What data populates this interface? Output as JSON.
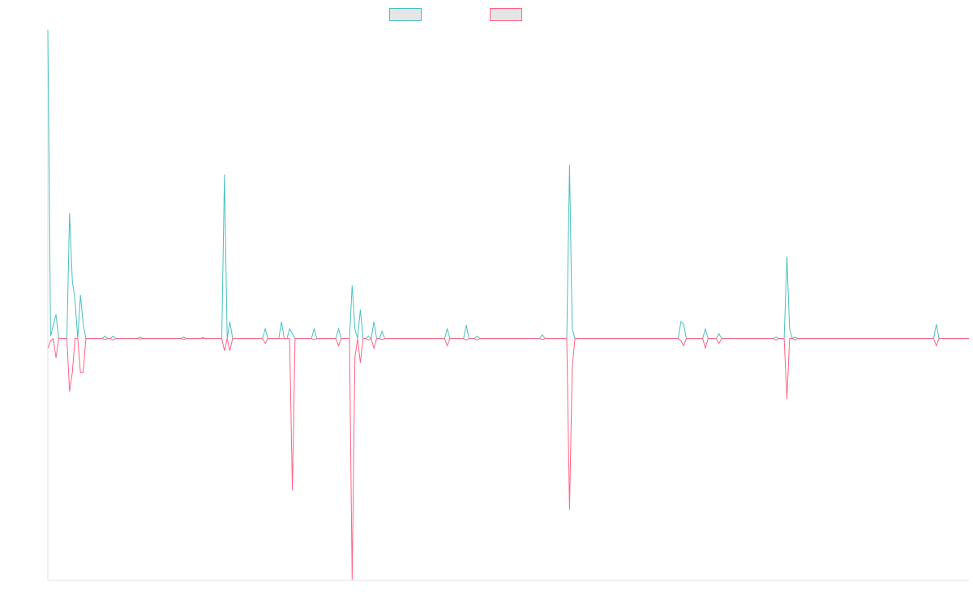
{
  "chart_data": {
    "type": "line",
    "title": "",
    "xlabel": "",
    "ylabel": "",
    "ylim": [
      -50,
      64
    ],
    "grid": false,
    "legend": "top-center",
    "series": [
      {
        "color": "#4bc0c0",
        "fill": "#e5e5e5",
        "points": [
          [
            0,
            64
          ],
          [
            1,
            0.5
          ],
          [
            3,
            5
          ],
          [
            4,
            0
          ],
          [
            5,
            0
          ],
          [
            6,
            0
          ],
          [
            7,
            0
          ],
          [
            8,
            26
          ],
          [
            9,
            12
          ],
          [
            10,
            8
          ],
          [
            11,
            0
          ],
          [
            12,
            9
          ],
          [
            13,
            3
          ],
          [
            14,
            0
          ],
          [
            20,
            0
          ],
          [
            21,
            0.5
          ],
          [
            22,
            0
          ],
          [
            23,
            0
          ],
          [
            24,
            0.5
          ],
          [
            25,
            0
          ],
          [
            26,
            0
          ],
          [
            27,
            0
          ],
          [
            28,
            0
          ],
          [
            29,
            0
          ],
          [
            30,
            0
          ],
          [
            31,
            0
          ],
          [
            32,
            0
          ],
          [
            33,
            0
          ],
          [
            34,
            0.3
          ],
          [
            35,
            0
          ],
          [
            49,
            0
          ],
          [
            50,
            0.3
          ],
          [
            51,
            0
          ],
          [
            56,
            0
          ],
          [
            57,
            0.2
          ],
          [
            58,
            0
          ],
          [
            63,
            0
          ],
          [
            64,
            0
          ],
          [
            65,
            34
          ],
          [
            66,
            0
          ],
          [
            67,
            3.5
          ],
          [
            68,
            0
          ],
          [
            79,
            0
          ],
          [
            80,
            2
          ],
          [
            81,
            0
          ],
          [
            85,
            0
          ],
          [
            86,
            3.5
          ],
          [
            87,
            0
          ],
          [
            88,
            0
          ],
          [
            89,
            2
          ],
          [
            90,
            1
          ],
          [
            91,
            0
          ],
          [
            97,
            0
          ],
          [
            98,
            2
          ],
          [
            99,
            0
          ],
          [
            106,
            0
          ],
          [
            107,
            2
          ],
          [
            108,
            0
          ],
          [
            110,
            0
          ],
          [
            111,
            0
          ],
          [
            112,
            11
          ],
          [
            113,
            2
          ],
          [
            114,
            0
          ],
          [
            115,
            6
          ],
          [
            116,
            0
          ],
          [
            117,
            0
          ],
          [
            118,
            0.5
          ],
          [
            119,
            0
          ],
          [
            120,
            3.5
          ],
          [
            121,
            0
          ],
          [
            122,
            0
          ],
          [
            123,
            1.5
          ],
          [
            124,
            0
          ],
          [
            146,
            0
          ],
          [
            147,
            2
          ],
          [
            148,
            0
          ],
          [
            153,
            0
          ],
          [
            154,
            2.8
          ],
          [
            155,
            0
          ],
          [
            157,
            0
          ],
          [
            158,
            0.5
          ],
          [
            159,
            0
          ],
          [
            181,
            0
          ],
          [
            182,
            0.8
          ],
          [
            183,
            0
          ],
          [
            191,
            0
          ],
          [
            192,
            36
          ],
          [
            193,
            2
          ],
          [
            194,
            0
          ],
          [
            195,
            0
          ],
          [
            196,
            0
          ],
          [
            197,
            0
          ],
          [
            205,
            0
          ],
          [
            206,
            0
          ],
          [
            207,
            0
          ],
          [
            232,
            0
          ],
          [
            233,
            3.5
          ],
          [
            234,
            3
          ],
          [
            235,
            0
          ],
          [
            241,
            0
          ],
          [
            242,
            2
          ],
          [
            243,
            0
          ],
          [
            246,
            0
          ],
          [
            247,
            1
          ],
          [
            248,
            0
          ],
          [
            251,
            0
          ],
          [
            252,
            0
          ],
          [
            253,
            0
          ],
          [
            254,
            0
          ],
          [
            256,
            0
          ],
          [
            257,
            0
          ],
          [
            258,
            0
          ],
          [
            266,
            0
          ],
          [
            267,
            0
          ],
          [
            268,
            0.3
          ],
          [
            269,
            0
          ],
          [
            271,
            0
          ],
          [
            272,
            17
          ],
          [
            273,
            2
          ],
          [
            274,
            0
          ],
          [
            275,
            0.3
          ],
          [
            276,
            0
          ],
          [
            277,
            0
          ],
          [
            278,
            0
          ],
          [
            279,
            0
          ],
          [
            326,
            0
          ],
          [
            327,
            3
          ],
          [
            328,
            0
          ],
          [
            339,
            0
          ]
        ]
      },
      {
        "color": "#ff6384",
        "fill": "#e5e5e5",
        "points": [
          [
            0,
            -2
          ],
          [
            1,
            -0.5
          ],
          [
            2,
            0
          ],
          [
            3,
            -4
          ],
          [
            4,
            0
          ],
          [
            5,
            0
          ],
          [
            6,
            0
          ],
          [
            7,
            0
          ],
          [
            8,
            -11
          ],
          [
            9,
            -7
          ],
          [
            10,
            0
          ],
          [
            11,
            0
          ],
          [
            12,
            -7
          ],
          [
            13,
            -7
          ],
          [
            14,
            0
          ],
          [
            20,
            0
          ],
          [
            21,
            -0.2
          ],
          [
            22,
            0
          ],
          [
            23,
            0
          ],
          [
            24,
            -0.3
          ],
          [
            25,
            0
          ],
          [
            26,
            0
          ],
          [
            27,
            0
          ],
          [
            28,
            0
          ],
          [
            29,
            0
          ],
          [
            30,
            0
          ],
          [
            31,
            0
          ],
          [
            32,
            0
          ],
          [
            33,
            0
          ],
          [
            34,
            -0.1
          ],
          [
            35,
            0
          ],
          [
            49,
            0
          ],
          [
            50,
            -0.2
          ],
          [
            51,
            0
          ],
          [
            56,
            0
          ],
          [
            57,
            0
          ],
          [
            58,
            0
          ],
          [
            63,
            0
          ],
          [
            64,
            0
          ],
          [
            65,
            -2.5
          ],
          [
            66,
            0
          ],
          [
            67,
            -2.5
          ],
          [
            68,
            0
          ],
          [
            79,
            0
          ],
          [
            80,
            -1
          ],
          [
            81,
            0
          ],
          [
            85,
            0
          ],
          [
            86,
            0
          ],
          [
            87,
            0
          ],
          [
            88,
            0
          ],
          [
            89,
            0
          ],
          [
            90,
            -31.5
          ],
          [
            91,
            0
          ],
          [
            97,
            0
          ],
          [
            98,
            -0.2
          ],
          [
            99,
            0
          ],
          [
            106,
            0
          ],
          [
            107,
            -1.5
          ],
          [
            108,
            0
          ],
          [
            110,
            0
          ],
          [
            111,
            0
          ],
          [
            112,
            -50
          ],
          [
            113,
            -4
          ],
          [
            114,
            0
          ],
          [
            115,
            -5
          ],
          [
            116,
            0
          ],
          [
            117,
            0
          ],
          [
            118,
            -0.3
          ],
          [
            119,
            0
          ],
          [
            120,
            -2
          ],
          [
            121,
            0
          ],
          [
            122,
            0
          ],
          [
            123,
            -0.2
          ],
          [
            124,
            0
          ],
          [
            146,
            0
          ],
          [
            147,
            -1.5
          ],
          [
            148,
            0
          ],
          [
            153,
            0
          ],
          [
            154,
            -0.3
          ],
          [
            155,
            0
          ],
          [
            157,
            0
          ],
          [
            158,
            -0.3
          ],
          [
            159,
            0
          ],
          [
            181,
            0
          ],
          [
            182,
            -0.2
          ],
          [
            183,
            0
          ],
          [
            191,
            0
          ],
          [
            192,
            -35.5
          ],
          [
            193,
            -6
          ],
          [
            194,
            0
          ],
          [
            195,
            0
          ],
          [
            196,
            0
          ],
          [
            197,
            0
          ],
          [
            205,
            0
          ],
          [
            206,
            0
          ],
          [
            207,
            0
          ],
          [
            232,
            0
          ],
          [
            233,
            -0.5
          ],
          [
            234,
            -1.5
          ],
          [
            235,
            0
          ],
          [
            241,
            0
          ],
          [
            242,
            -2
          ],
          [
            243,
            0
          ],
          [
            246,
            0
          ],
          [
            247,
            -1
          ],
          [
            248,
            0
          ],
          [
            251,
            0
          ],
          [
            252,
            0
          ],
          [
            253,
            0
          ],
          [
            254,
            0
          ],
          [
            256,
            0
          ],
          [
            257,
            0
          ],
          [
            258,
            0
          ],
          [
            266,
            0
          ],
          [
            267,
            0
          ],
          [
            268,
            -0.3
          ],
          [
            269,
            0
          ],
          [
            271,
            0
          ],
          [
            272,
            -12.5
          ],
          [
            273,
            0
          ],
          [
            274,
            0
          ],
          [
            275,
            -0.3
          ],
          [
            276,
            0
          ],
          [
            277,
            0
          ],
          [
            278,
            0
          ],
          [
            279,
            0
          ],
          [
            326,
            0
          ],
          [
            327,
            -1.5
          ],
          [
            328,
            0
          ],
          [
            339,
            0
          ]
        ]
      }
    ],
    "xlim": [
      0,
      339
    ]
  }
}
